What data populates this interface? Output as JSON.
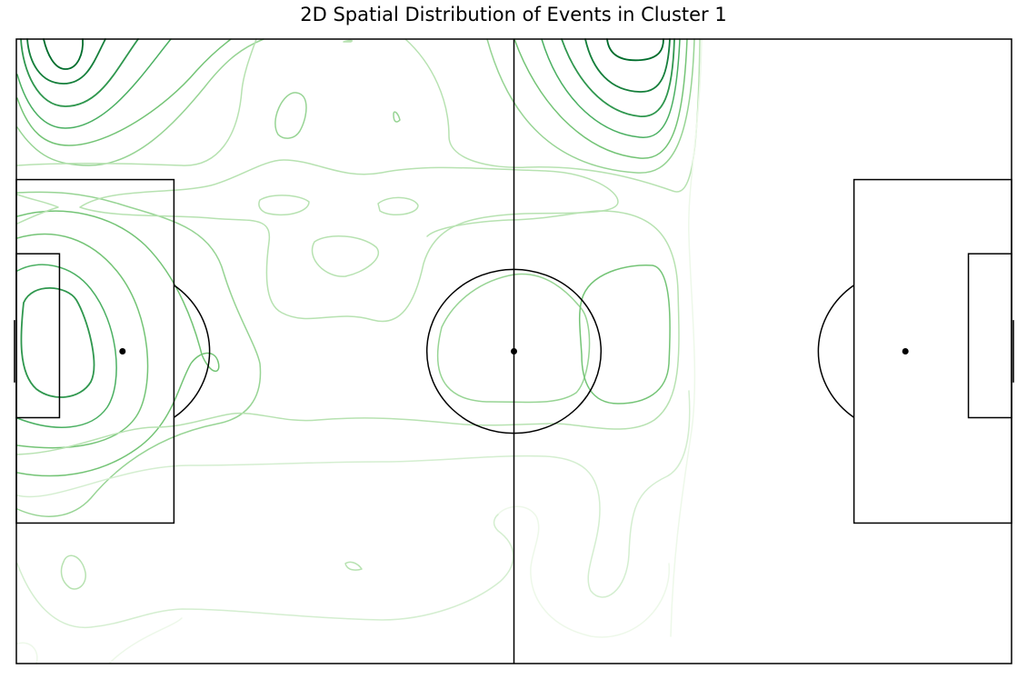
{
  "chart_data": {
    "type": "contour",
    "title": "2D Spatial Distribution of Events in Cluster 1",
    "xlabel": "",
    "ylabel": "",
    "xlim": [
      0,
      120
    ],
    "ylim": [
      0,
      80
    ],
    "grid": false,
    "legend": "none",
    "colormap": "Greens",
    "levels": [
      {
        "level": 1,
        "color": "#edf8e9"
      },
      {
        "level": 2,
        "color": "#d4eed0"
      },
      {
        "level": 3,
        "color": "#b7e2b1"
      },
      {
        "level": 4,
        "color": "#97d494"
      },
      {
        "level": 5,
        "color": "#74c476"
      },
      {
        "level": 6,
        "color": "#4bb062"
      },
      {
        "level": 7,
        "color": "#2f974e"
      },
      {
        "level": 8,
        "color": "#157f3b"
      },
      {
        "level": 9,
        "color": "#006d2c"
      }
    ],
    "density_peaks": [
      {
        "x": 6,
        "y": 2,
        "level": 9
      },
      {
        "x": 77,
        "y": 2,
        "level": 9
      },
      {
        "x": 4,
        "y": 40,
        "level": 6
      },
      {
        "x": 70,
        "y": 39,
        "level": 6
      },
      {
        "x": 60,
        "y": 40,
        "level": 4
      },
      {
        "x": 39,
        "y": 28,
        "level": 3
      }
    ]
  },
  "pitch": {
    "length": 120,
    "width": 80,
    "line_color": "#000000"
  }
}
